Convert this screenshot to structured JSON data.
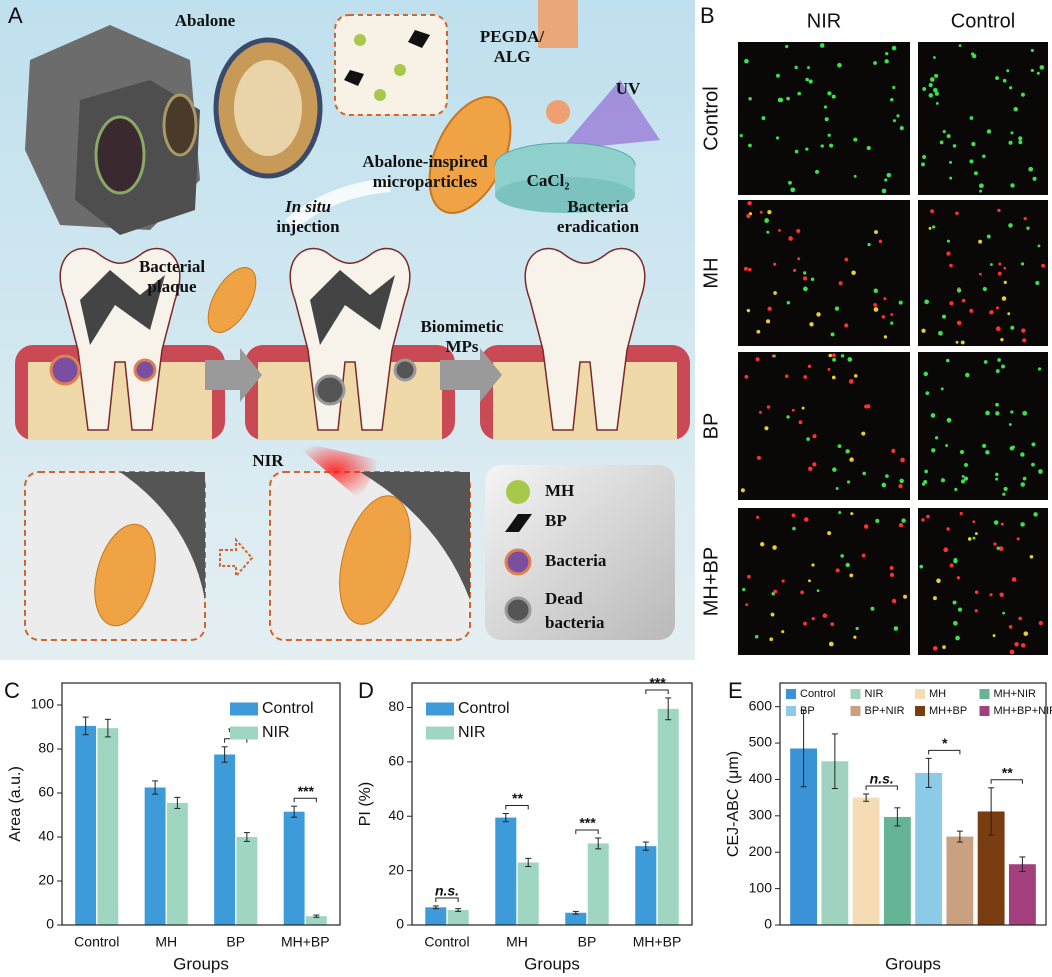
{
  "panel_a": {
    "label": "A",
    "texts": [
      {
        "lines": [
          "Abalone"
        ]
      },
      {
        "lines": [
          "PEGDA/",
          "ALG"
        ]
      },
      {
        "lines": [
          "UV"
        ]
      },
      {
        "lines": [
          "CaCl₂"
        ]
      },
      {
        "lines": [
          "Abalone-inspired",
          "microparticles"
        ]
      },
      {
        "lines": [
          "In situ",
          "injection"
        ]
      },
      {
        "lines": [
          "Bacteria",
          "eradication"
        ]
      },
      {
        "lines": [
          "Bacterial",
          "plaque"
        ]
      },
      {
        "lines": [
          "Biomimetic",
          "MPs"
        ]
      },
      {
        "lines": [
          "NIR"
        ]
      }
    ],
    "legend": [
      {
        "lines": [
          "MH"
        ]
      },
      {
        "lines": [
          "BP"
        ]
      },
      {
        "lines": [
          "Bacteria"
        ]
      },
      {
        "lines": [
          "Dead",
          "bacteria"
        ]
      }
    ]
  },
  "panel_b": {
    "label": "B",
    "columns": [
      "NIR",
      "Control"
    ],
    "rows": [
      "Control",
      "MH",
      "BP",
      "MH+BP"
    ]
  },
  "chart_data": [
    {
      "type": "bar",
      "panel_label": "C",
      "ylabel": "Area (a.u.)",
      "xlabel": "Groups",
      "categories": [
        "Control",
        "MH",
        "BP",
        "MH+BP"
      ],
      "series": [
        {
          "name": "Control",
          "color": "#3c9bd8",
          "values": [
            90.5,
            62.5,
            77.5,
            51.5
          ],
          "errors": [
            4,
            3,
            3.5,
            2.5
          ]
        },
        {
          "name": "NIR",
          "color": "#9fd6c2",
          "values": [
            89.5,
            55.5,
            40,
            4
          ],
          "errors": [
            4,
            2.5,
            2,
            0.5
          ]
        }
      ],
      "ylim": [
        0,
        110
      ],
      "yticks": [
        0,
        20,
        40,
        60,
        80,
        100
      ],
      "legend": "upper right",
      "annotations": [
        {
          "text": "***",
          "category": 2
        },
        {
          "text": "***",
          "category": 3
        }
      ]
    },
    {
      "type": "bar",
      "panel_label": "D",
      "ylabel": "PI (%)",
      "xlabel": "Groups",
      "categories": [
        "Control",
        "MH",
        "BP",
        "MH+BP"
      ],
      "series": [
        {
          "name": "Control",
          "color": "#3c9bd8",
          "values": [
            6.5,
            39.5,
            4.5,
            29
          ],
          "errors": [
            0.5,
            1.5,
            0.5,
            1.5
          ]
        },
        {
          "name": "NIR",
          "color": "#9fd6c2",
          "values": [
            5.5,
            23,
            30,
            79.5
          ],
          "errors": [
            0.5,
            1.5,
            2,
            4
          ]
        }
      ],
      "ylim": [
        0,
        89
      ],
      "yticks": [
        0,
        20,
        40,
        60,
        80
      ],
      "legend": "upper left",
      "annotations": [
        {
          "text": "n.s.",
          "category": 0
        },
        {
          "text": "**",
          "category": 1
        },
        {
          "text": "***",
          "category": 2
        },
        {
          "text": "***",
          "category": 3
        }
      ]
    },
    {
      "type": "bar",
      "panel_label": "E",
      "ylabel": "CEJ-ABC (μm)",
      "xlabel": "Groups",
      "categories": [
        null
      ],
      "series": [
        {
          "name": "Control",
          "color": "#3a93d6",
          "values": [
            485
          ],
          "errors": [
            105
          ]
        },
        {
          "name": "NIR",
          "color": "#9fd3c0",
          "values": [
            450
          ],
          "errors": [
            75
          ]
        },
        {
          "name": "MH",
          "color": "#f6dcb5",
          "values": [
            350
          ],
          "errors": [
            10
          ]
        },
        {
          "name": "MH+NIR",
          "color": "#66b496",
          "values": [
            297
          ],
          "errors": [
            25
          ]
        },
        {
          "name": "BP",
          "color": "#8ccbe8",
          "values": [
            418
          ],
          "errors": [
            40
          ]
        },
        {
          "name": "BP+NIR",
          "color": "#c9a080",
          "values": [
            243
          ],
          "errors": [
            15
          ]
        },
        {
          "name": "MH+BP",
          "color": "#7a3d12",
          "values": [
            312
          ],
          "errors": [
            65
          ]
        },
        {
          "name": "MH+BP+NIR",
          "color": "#a23f7c",
          "values": [
            167
          ],
          "errors": [
            20
          ]
        }
      ],
      "ylim": [
        0,
        665
      ],
      "yticks": [
        0,
        100,
        200,
        300,
        400,
        500,
        600
      ],
      "legend": "upper center",
      "legend_columns": 4,
      "annotations": [
        {
          "text": "n.s.",
          "series": [
            2,
            3
          ]
        },
        {
          "text": "*",
          "series": [
            4,
            5
          ]
        },
        {
          "text": "**",
          "series": [
            6,
            7
          ]
        }
      ]
    }
  ]
}
